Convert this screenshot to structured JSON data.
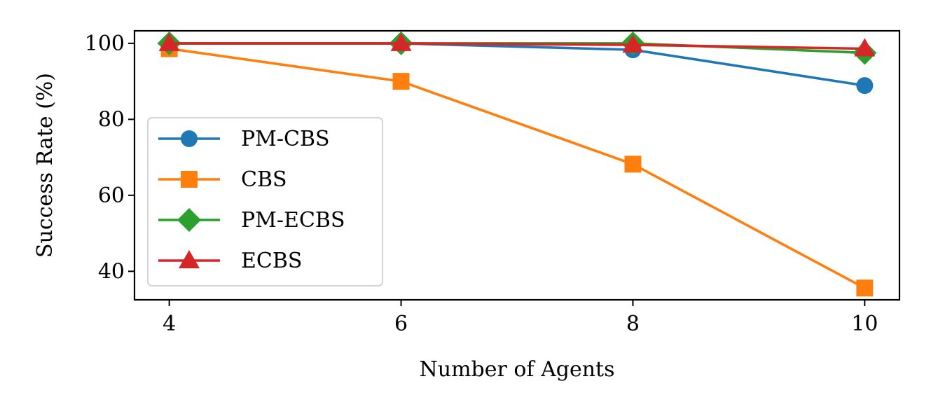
{
  "chart_data": {
    "type": "line",
    "title": "",
    "xlabel": "Number of Agents",
    "ylabel": "Success Rate (%)",
    "x": [
      4,
      6,
      8,
      10
    ],
    "xlim": [
      3.7,
      10.3
    ],
    "ylim": [
      32.5,
      103.3
    ],
    "xticks": [
      4,
      6,
      8,
      10
    ],
    "yticks": [
      40,
      60,
      80,
      100
    ],
    "grid": false,
    "legend_position": "lower-left",
    "series": [
      {
        "name": "PM-CBS",
        "color": "#1f77b4",
        "marker": "circle",
        "values": [
          100,
          100,
          98.3,
          88.9
        ]
      },
      {
        "name": "CBS",
        "color": "#ff7f0e",
        "marker": "square",
        "values": [
          98.6,
          90,
          68.2,
          35.6
        ]
      },
      {
        "name": "PM-ECBS",
        "color": "#2ca02c",
        "marker": "diamond",
        "values": [
          100,
          100,
          100,
          97.5
        ]
      },
      {
        "name": "ECBS",
        "color": "#d62728",
        "marker": "triangle",
        "values": [
          100,
          100,
          99.6,
          98.6
        ]
      }
    ]
  }
}
